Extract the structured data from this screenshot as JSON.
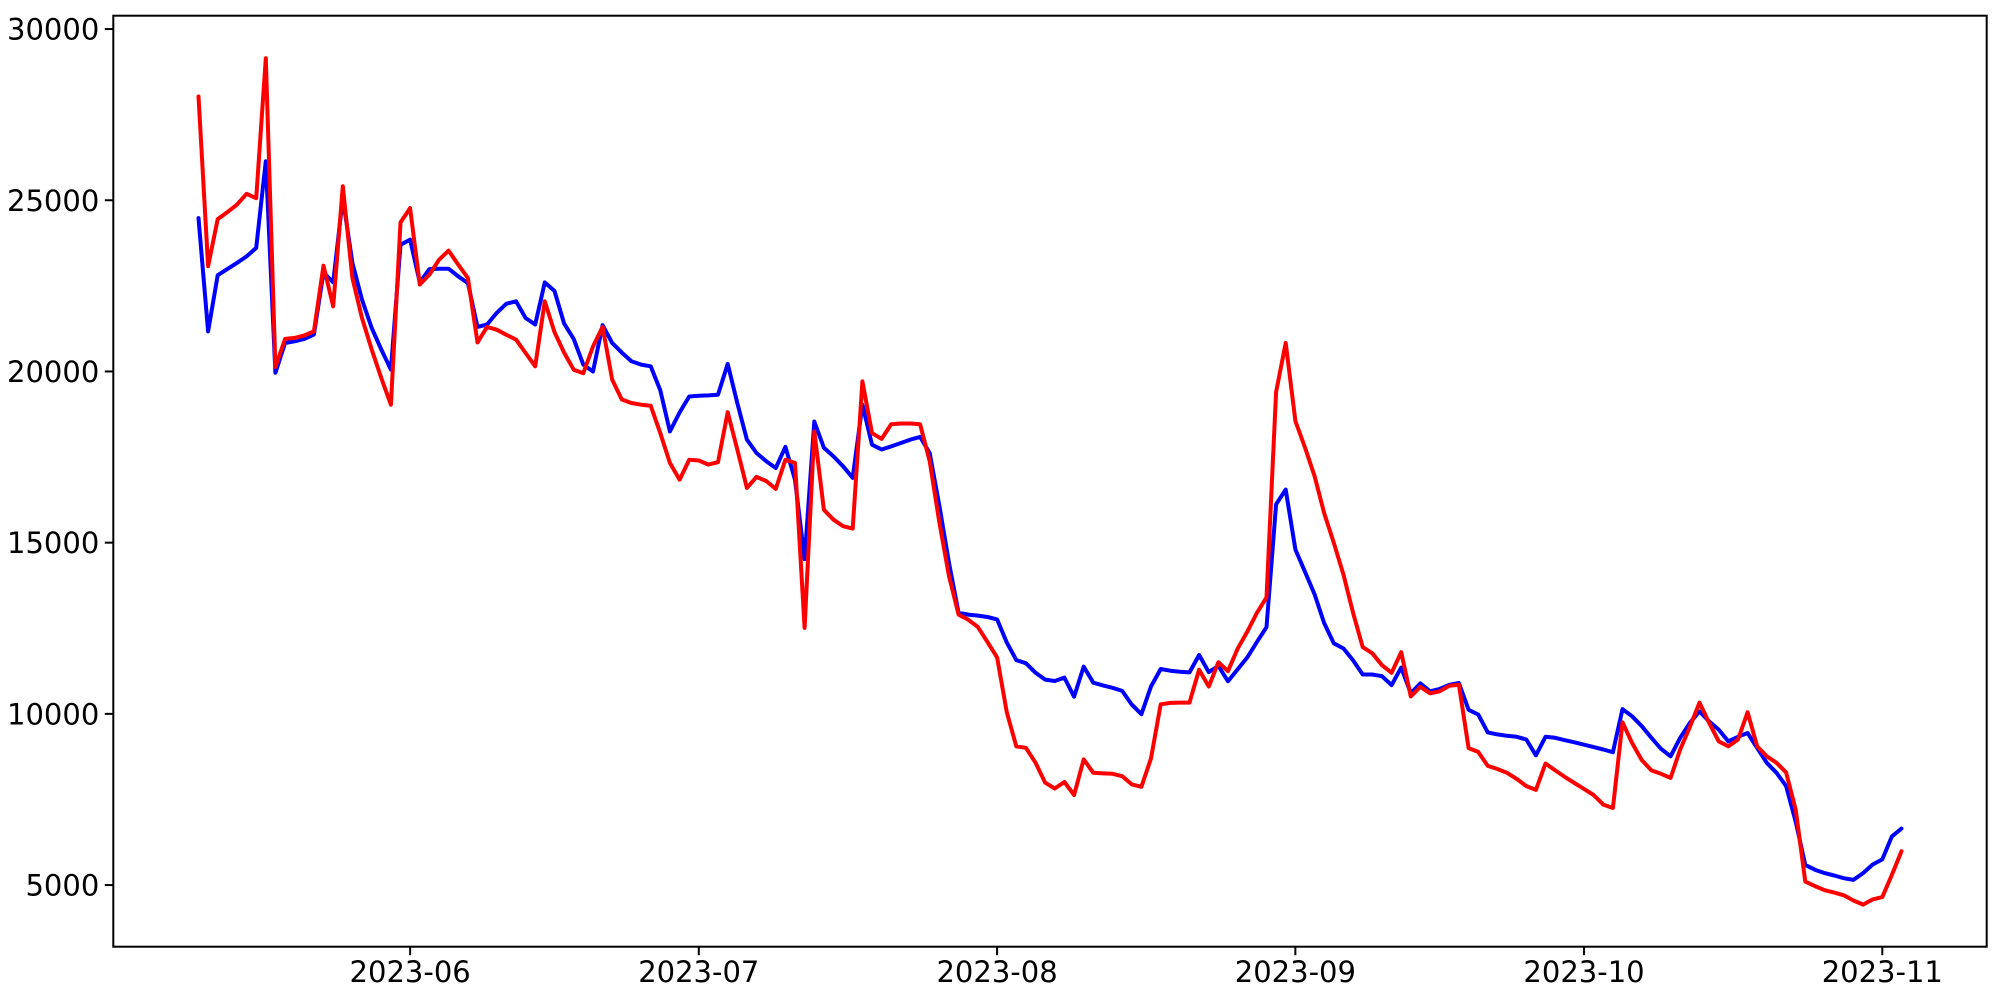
{
  "figure": {
    "background_color": "#ffffff",
    "axes_color": "#000000"
  },
  "chart_data": {
    "type": "line",
    "title": "",
    "xlabel": "",
    "ylabel": "",
    "grid": false,
    "legend_position": "none",
    "ylim": [
      3200,
      30390
    ],
    "xlim_days": [
      -8.85,
      185.85
    ],
    "y_ticks": [
      5000,
      10000,
      15000,
      20000,
      25000,
      30000
    ],
    "x_ticks": [
      {
        "label": "2023-06",
        "index": 22
      },
      {
        "label": "2023-07",
        "index": 52
      },
      {
        "label": "2023-08",
        "index": 83
      },
      {
        "label": "2023-09",
        "index": 114
      },
      {
        "label": "2023-10",
        "index": 144
      },
      {
        "label": "2023-11",
        "index": 175
      }
    ],
    "x": [
      "2023-05-10",
      "2023-05-11",
      "2023-05-12",
      "2023-05-13",
      "2023-05-14",
      "2023-05-15",
      "2023-05-16",
      "2023-05-17",
      "2023-05-18",
      "2023-05-19",
      "2023-05-20",
      "2023-05-21",
      "2023-05-22",
      "2023-05-23",
      "2023-05-24",
      "2023-05-25",
      "2023-05-26",
      "2023-05-27",
      "2023-05-28",
      "2023-05-29",
      "2023-05-30",
      "2023-05-31",
      "2023-06-01",
      "2023-06-02",
      "2023-06-03",
      "2023-06-04",
      "2023-06-05",
      "2023-06-06",
      "2023-06-07",
      "2023-06-08",
      "2023-06-09",
      "2023-06-10",
      "2023-06-11",
      "2023-06-12",
      "2023-06-13",
      "2023-06-14",
      "2023-06-15",
      "2023-06-16",
      "2023-06-17",
      "2023-06-18",
      "2023-06-19",
      "2023-06-20",
      "2023-06-21",
      "2023-06-22",
      "2023-06-23",
      "2023-06-24",
      "2023-06-25",
      "2023-06-26",
      "2023-06-27",
      "2023-06-28",
      "2023-06-29",
      "2023-06-30",
      "2023-07-01",
      "2023-07-02",
      "2023-07-03",
      "2023-07-04",
      "2023-07-05",
      "2023-07-06",
      "2023-07-07",
      "2023-07-08",
      "2023-07-09",
      "2023-07-10",
      "2023-07-11",
      "2023-07-12",
      "2023-07-13",
      "2023-07-14",
      "2023-07-15",
      "2023-07-16",
      "2023-07-17",
      "2023-07-18",
      "2023-07-19",
      "2023-07-20",
      "2023-07-21",
      "2023-07-22",
      "2023-07-23",
      "2023-07-24",
      "2023-07-25",
      "2023-07-26",
      "2023-07-27",
      "2023-07-28",
      "2023-07-29",
      "2023-07-30",
      "2023-07-31",
      "2023-08-01",
      "2023-08-02",
      "2023-08-03",
      "2023-08-04",
      "2023-08-05",
      "2023-08-06",
      "2023-08-07",
      "2023-08-08",
      "2023-08-09",
      "2023-08-10",
      "2023-08-11",
      "2023-08-12",
      "2023-08-13",
      "2023-08-14",
      "2023-08-15",
      "2023-08-16",
      "2023-08-17",
      "2023-08-18",
      "2023-08-19",
      "2023-08-20",
      "2023-08-21",
      "2023-08-22",
      "2023-08-23",
      "2023-08-24",
      "2023-08-25",
      "2023-08-26",
      "2023-08-27",
      "2023-08-28",
      "2023-08-29",
      "2023-08-30",
      "2023-08-31",
      "2023-09-01",
      "2023-09-02",
      "2023-09-03",
      "2023-09-04",
      "2023-09-05",
      "2023-09-06",
      "2023-09-07",
      "2023-09-08",
      "2023-09-09",
      "2023-09-10",
      "2023-09-11",
      "2023-09-12",
      "2023-09-13",
      "2023-09-14",
      "2023-09-15",
      "2023-09-16",
      "2023-09-17",
      "2023-09-18",
      "2023-09-19",
      "2023-09-20",
      "2023-09-21",
      "2023-09-22",
      "2023-09-23",
      "2023-09-24",
      "2023-09-25",
      "2023-09-26",
      "2023-09-27",
      "2023-09-28",
      "2023-09-29",
      "2023-09-30",
      "2023-10-01",
      "2023-10-02",
      "2023-10-03",
      "2023-10-04",
      "2023-10-05",
      "2023-10-06",
      "2023-10-07",
      "2023-10-08",
      "2023-10-09",
      "2023-10-10",
      "2023-10-11",
      "2023-10-12",
      "2023-10-13",
      "2023-10-14",
      "2023-10-15",
      "2023-10-16",
      "2023-10-17",
      "2023-10-18",
      "2023-10-19",
      "2023-10-20",
      "2023-10-21",
      "2023-10-22",
      "2023-10-23",
      "2023-10-24",
      "2023-10-25",
      "2023-10-26",
      "2023-10-27",
      "2023-10-28",
      "2023-10-29",
      "2023-10-30",
      "2023-10-31",
      "2023-11-01",
      "2023-11-02",
      "2023-11-03"
    ],
    "series": [
      {
        "name": "blue",
        "color": "#0000ff",
        "values": [
          24480,
          21170,
          22810,
          22990,
          23170,
          23360,
          23610,
          26140,
          19960,
          20830,
          20880,
          20950,
          21080,
          22890,
          22600,
          25070,
          23170,
          22100,
          21270,
          20640,
          20050,
          23700,
          23850,
          22600,
          22990,
          23000,
          23000,
          22780,
          22580,
          21300,
          21370,
          21710,
          21980,
          22050,
          21560,
          21370,
          22600,
          22350,
          21400,
          20950,
          20200,
          20000,
          21350,
          20830,
          20550,
          20300,
          20200,
          20150,
          19450,
          18250,
          18800,
          19270,
          19290,
          19300,
          19320,
          20220,
          19080,
          18010,
          17620,
          17380,
          17180,
          17800,
          16840,
          14520,
          18540,
          17770,
          17520,
          17230,
          16890,
          19030,
          17860,
          17720,
          17810,
          17910,
          18010,
          18090,
          17620,
          16090,
          14410,
          12950,
          12900,
          12870,
          12830,
          12760,
          12090,
          11570,
          11480,
          11200,
          11000,
          10960,
          11060,
          10500,
          11380,
          10910,
          10830,
          10760,
          10670,
          10270,
          9990,
          10800,
          11310,
          11260,
          11230,
          11210,
          11720,
          11220,
          11400,
          10950,
          11300,
          11650,
          12100,
          12530,
          16120,
          16550,
          14800,
          14150,
          13490,
          12650,
          12060,
          11910,
          11560,
          11150,
          11150,
          11100,
          10840,
          11350,
          10600,
          10890,
          10660,
          10730,
          10850,
          10900,
          10120,
          9980,
          9460,
          9400,
          9360,
          9330,
          9250,
          8790,
          9330,
          9300,
          9230,
          9170,
          9100,
          9030,
          8960,
          8880,
          10140,
          9930,
          9640,
          9300,
          8980,
          8760,
          9300,
          9740,
          10070,
          9780,
          9540,
          9200,
          9330,
          9440,
          9000,
          8570,
          8280,
          7890,
          6850,
          5590,
          5450,
          5350,
          5280,
          5200,
          5150,
          5350,
          5600,
          5750,
          6420,
          6650
        ]
      },
      {
        "name": "red",
        "color": "#ff0000",
        "values": [
          28030,
          23070,
          24450,
          24650,
          24870,
          25190,
          25060,
          29150,
          20130,
          20950,
          20980,
          21050,
          21170,
          23090,
          21900,
          25410,
          22730,
          21560,
          20640,
          19810,
          19030,
          24350,
          24770,
          22540,
          22830,
          23260,
          23530,
          23120,
          22730,
          20850,
          21300,
          21220,
          21070,
          20930,
          20540,
          20150,
          22050,
          21150,
          20550,
          20050,
          19950,
          20730,
          21300,
          19760,
          19180,
          19080,
          19030,
          19000,
          18200,
          17330,
          16840,
          17420,
          17400,
          17280,
          17350,
          18810,
          17720,
          16600,
          16920,
          16800,
          16570,
          17420,
          17330,
          12510,
          18250,
          15960,
          15670,
          15480,
          15410,
          19710,
          18200,
          18030,
          18460,
          18480,
          18480,
          18460,
          17380,
          15600,
          14020,
          12900,
          12750,
          12540,
          12100,
          11650,
          10060,
          9050,
          9010,
          8570,
          7990,
          7820,
          8010,
          7630,
          8670,
          8280,
          8260,
          8250,
          8180,
          7940,
          7870,
          8700,
          10280,
          10320,
          10330,
          10330,
          11290,
          10800,
          11510,
          11250,
          11900,
          12400,
          12950,
          13400,
          19400,
          20830,
          18550,
          17780,
          16940,
          15860,
          15000,
          14060,
          12950,
          11950,
          11770,
          11420,
          11200,
          11800,
          10510,
          10790,
          10600,
          10660,
          10820,
          10850,
          9000,
          8890,
          8480,
          8390,
          8280,
          8100,
          7890,
          7780,
          8550,
          8350,
          8160,
          7980,
          7810,
          7630,
          7350,
          7250,
          9750,
          9150,
          8650,
          8350,
          8250,
          8130,
          8960,
          9620,
          10330,
          9740,
          9200,
          9050,
          9250,
          10050,
          9050,
          8760,
          8570,
          8290,
          7200,
          5100,
          4970,
          4850,
          4780,
          4700,
          4550,
          4430,
          4580,
          4650,
          5300,
          5990
        ]
      }
    ]
  }
}
